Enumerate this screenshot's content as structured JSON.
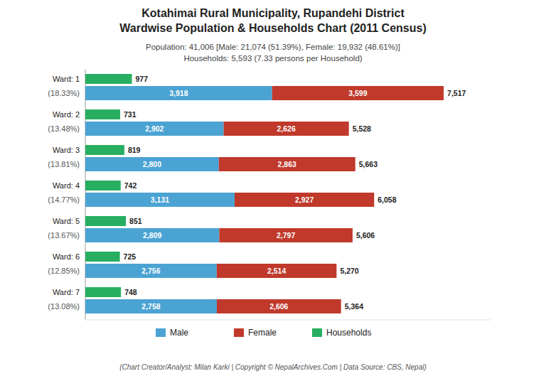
{
  "chart_data": {
    "type": "bar",
    "orientation": "horizontal",
    "stacked": true,
    "title": [
      "Kotahimai Rural Municipality, Rupandehi District",
      "Wardwise Population & Households Chart (2011 Census)"
    ],
    "subtitle": [
      "Population: 41,006 [Male: 21,074 (51.39%), Female: 19,932 (48.61%)]",
      "Households: 5,593 (7.33 persons per Household)"
    ],
    "footer": "(Chart Creator/Analyst: Milan Karki | Copyright © NepalArchives.Com | Data Source: CBS, Nepal)",
    "categories": [
      "Ward: 1",
      "Ward: 2",
      "Ward: 3",
      "Ward: 4",
      "Ward: 5",
      "Ward: 6",
      "Ward: 7"
    ],
    "share_labels": [
      "(18.33%)",
      "(13.48%)",
      "(13.81%)",
      "(14.77%)",
      "(13.67%)",
      "(12.85%)",
      "(13.08%)"
    ],
    "series": [
      {
        "name": "Male",
        "type": "stacked_bar",
        "color": "#4BA3D3",
        "values": [
          3918,
          2902,
          2800,
          3131,
          2809,
          2756,
          2758
        ],
        "value_labels": [
          "3,918",
          "2,902",
          "2,800",
          "3,131",
          "2,809",
          "2,756",
          "2,758"
        ]
      },
      {
        "name": "Female",
        "type": "stacked_bar",
        "color": "#C0392B",
        "values": [
          3599,
          2626,
          2863,
          2927,
          2797,
          2514,
          2606
        ],
        "value_labels": [
          "3,599",
          "2,626",
          "2,863",
          "2,927",
          "2,797",
          "2,514",
          "2,606"
        ]
      },
      {
        "name": "Households",
        "type": "bar",
        "color": "#27AE60",
        "values": [
          977,
          731,
          819,
          742,
          851,
          725,
          748
        ]
      }
    ],
    "totals": [
      7517,
      5528,
      5663,
      6058,
      5606,
      5270,
      5364
    ],
    "total_labels": [
      "7,517",
      "5,528",
      "5,663",
      "6,058",
      "5,606",
      "5,270",
      "5,364"
    ],
    "xlim": [
      0,
      8500
    ],
    "data_labels": true,
    "tick_labels": false,
    "grid": false,
    "legend": "bottom"
  }
}
